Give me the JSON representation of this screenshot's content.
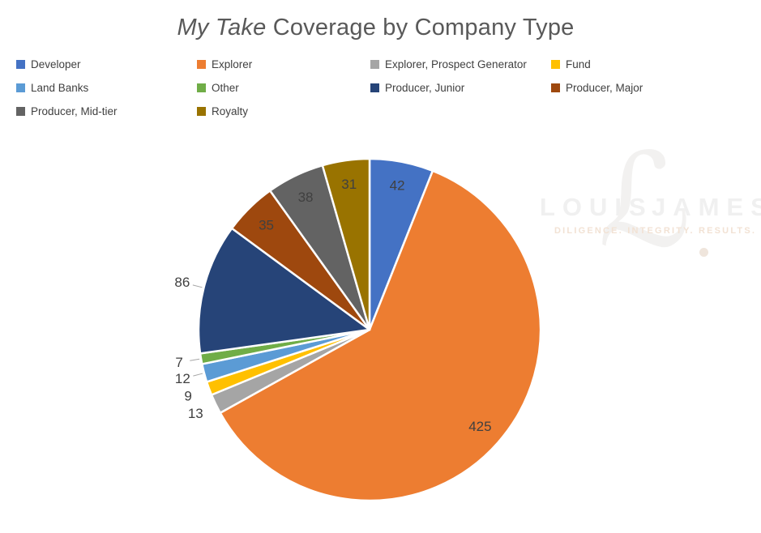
{
  "title": {
    "italic": "My Take",
    "rest": " Coverage by Company Type"
  },
  "watermark": {
    "word_left": "LOUIS",
    "word_right": "JAMES",
    "script_letter": "ℒ",
    "tagline": "DILIGENCE. INTEGRITY. RESULTS."
  },
  "chart_data": {
    "type": "pie",
    "title": "My Take Coverage by Company Type",
    "legend_position": "top",
    "start_angle_deg": 0,
    "direction": "clockwise",
    "total": 698,
    "data_labels": "values",
    "slices": [
      {
        "label": "Developer",
        "value": 42,
        "color": "#4472C4",
        "label_pos": "inside",
        "leader": false
      },
      {
        "label": "Explorer",
        "value": 425,
        "color": "#ED7D31",
        "label_pos": "inside",
        "leader": false
      },
      {
        "label": "Explorer, Prospect Generator",
        "value": 13,
        "color": "#A5A5A5",
        "label_pos": "outside",
        "leader": false
      },
      {
        "label": "Fund",
        "value": 9,
        "color": "#FFC000",
        "label_pos": "outside",
        "leader": false
      },
      {
        "label": "Land Banks",
        "value": 12,
        "color": "#5B9BD5",
        "label_pos": "outside",
        "leader": true
      },
      {
        "label": "Other",
        "value": 7,
        "color": "#70AD47",
        "label_pos": "outside",
        "leader": true
      },
      {
        "label": "Producer, Junior",
        "value": 86,
        "color": "#264478",
        "label_pos": "outside",
        "leader": true
      },
      {
        "label": "Producer, Major",
        "value": 35,
        "color": "#9E480E",
        "label_pos": "inside",
        "leader": false
      },
      {
        "label": "Producer, Mid-tier",
        "value": 38,
        "color": "#636363",
        "label_pos": "inside",
        "leader": false
      },
      {
        "label": "Royalty",
        "value": 31,
        "color": "#997300",
        "label_pos": "inside",
        "leader": false
      }
    ]
  },
  "colors": {
    "title_text": "#595959",
    "legend_text": "#404040",
    "data_label_text": "#404040",
    "slice_border": "#ffffff",
    "leader_line": "#a6a6a6",
    "background": "#ffffff"
  }
}
